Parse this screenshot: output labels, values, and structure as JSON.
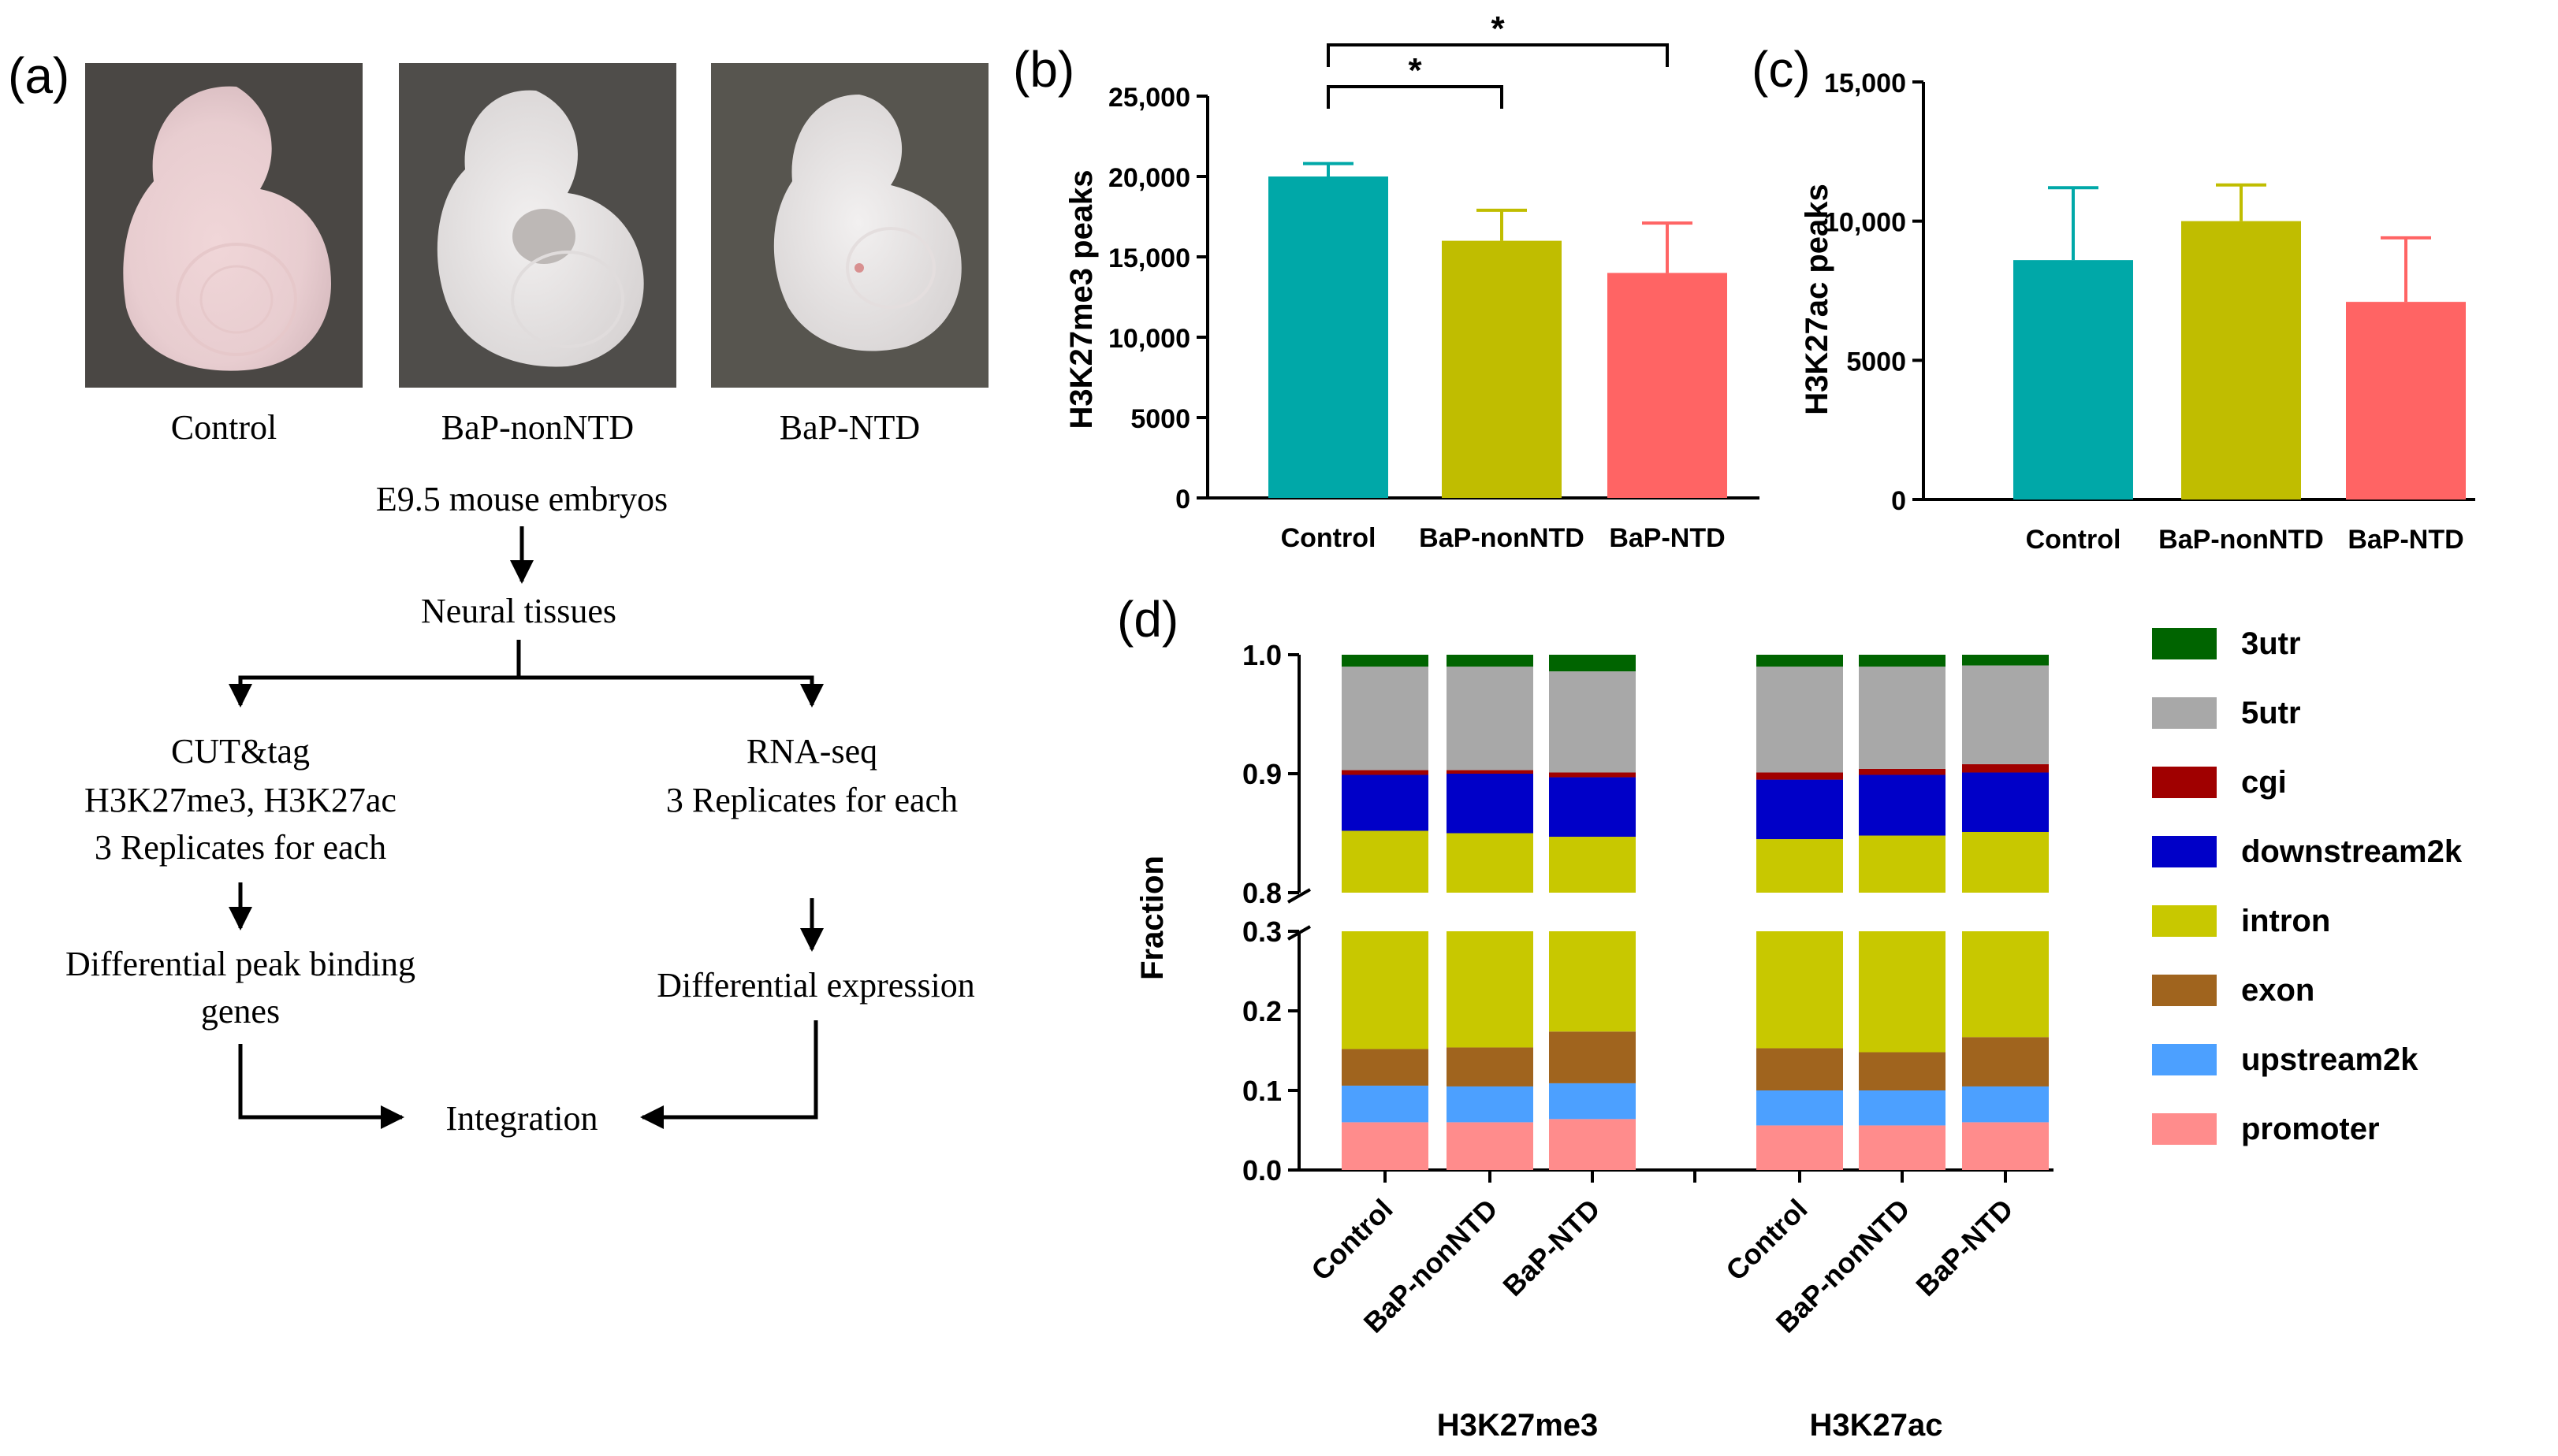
{
  "panel_a": {
    "label": "(a)",
    "embryos": [
      {
        "caption": "Control"
      },
      {
        "caption": "BaP-nonNTD"
      },
      {
        "caption": "BaP-NTD"
      }
    ],
    "flow": {
      "start": "E9.5 mouse embryos",
      "tissue": "Neural tissues",
      "left_lines": [
        "CUT&tag",
        "H3K27me3, H3K27ac",
        "3 Replicates for each"
      ],
      "right_lines": [
        "RNA-seq",
        "3 Replicates for each"
      ],
      "left_result_lines": [
        "Differential peak binding",
        "genes"
      ],
      "right_result": "Differential expression",
      "final": "Integration"
    }
  },
  "colors": {
    "control": "#00a8a8",
    "nonntd": "#c0bd00",
    "ntd": "#ff6464",
    "3utr": "#006400",
    "5utr": "#a8a8a8",
    "cgi": "#a00000",
    "downstream2k": "#0000c8",
    "intron": "#c8c800",
    "exon": "#a0641e",
    "upstream2k": "#4ca0ff",
    "promoter": "#ff8c8c"
  },
  "chart_data": [
    {
      "id": "b",
      "panel_label": "(b)",
      "type": "bar",
      "ylabel": "H3K27me3 peaks",
      "categories": [
        "Control",
        "BaP-nonNTD",
        "BaP-NTD"
      ],
      "values": [
        20000,
        16000,
        14000
      ],
      "errors": [
        800,
        1900,
        3100
      ],
      "ylim": [
        0,
        25000
      ],
      "yticks": [
        0,
        5000,
        10000,
        15000,
        20000,
        25000
      ],
      "ytick_labels": [
        "0",
        "5000",
        "10,000",
        "15,000",
        "20,000",
        "25,000"
      ],
      "significance": [
        {
          "from": 0,
          "to": 1,
          "label": "*"
        },
        {
          "from": 0,
          "to": 2,
          "label": "*"
        }
      ]
    },
    {
      "id": "c",
      "panel_label": "(c)",
      "type": "bar",
      "ylabel": "H3K27ac peaks",
      "categories": [
        "Control",
        "BaP-nonNTD",
        "BaP-NTD"
      ],
      "values": [
        8600,
        10000,
        7100
      ],
      "errors": [
        2600,
        1300,
        2300
      ],
      "ylim": [
        0,
        15000
      ],
      "yticks": [
        0,
        5000,
        10000,
        15000
      ],
      "ytick_labels": [
        "0",
        "5000",
        "10,000",
        "15,000"
      ]
    },
    {
      "id": "d",
      "panel_label": "(d)",
      "type": "stacked-bar",
      "ylabel": "Fraction",
      "axis_break": {
        "lower": [
          0,
          0.3
        ],
        "upper": [
          0.8,
          1.0
        ]
      },
      "yticks_lower": [
        "0.0",
        "0.1",
        "0.2",
        "0.3"
      ],
      "yticks_upper": [
        "0.8",
        "0.9",
        "1.0"
      ],
      "groups": [
        "H3K27me3",
        "H3K27ac"
      ],
      "categories": [
        "Control",
        "BaP-nonNTD",
        "BaP-NTD",
        "Control",
        "BaP-nonNTD",
        "BaP-NTD"
      ],
      "stack_order": [
        "promoter",
        "upstream2k",
        "exon",
        "intron",
        "downstream2k",
        "cgi",
        "5utr",
        "3utr"
      ],
      "legend_order": [
        "3utr",
        "5utr",
        "cgi",
        "downstream2k",
        "intron",
        "exon",
        "upstream2k",
        "promoter"
      ],
      "series": [
        {
          "name": "promoter",
          "values": [
            0.06,
            0.06,
            0.064,
            0.056,
            0.056,
            0.06
          ]
        },
        {
          "name": "upstream2k",
          "values": [
            0.046,
            0.045,
            0.045,
            0.044,
            0.044,
            0.045
          ]
        },
        {
          "name": "exon",
          "values": [
            0.046,
            0.049,
            0.065,
            0.053,
            0.048,
            0.062
          ]
        },
        {
          "name": "intron",
          "values": [
            0.7,
            0.696,
            0.673,
            0.692,
            0.7,
            0.684
          ]
        },
        {
          "name": "downstream2k",
          "values": [
            0.047,
            0.05,
            0.05,
            0.05,
            0.051,
            0.05
          ]
        },
        {
          "name": "cgi",
          "values": [
            0.004,
            0.003,
            0.004,
            0.006,
            0.005,
            0.007
          ]
        },
        {
          "name": "5utr",
          "values": [
            0.087,
            0.087,
            0.085,
            0.089,
            0.086,
            0.083
          ]
        },
        {
          "name": "3utr",
          "values": [
            0.01,
            0.01,
            0.014,
            0.01,
            0.01,
            0.009
          ]
        }
      ]
    }
  ]
}
